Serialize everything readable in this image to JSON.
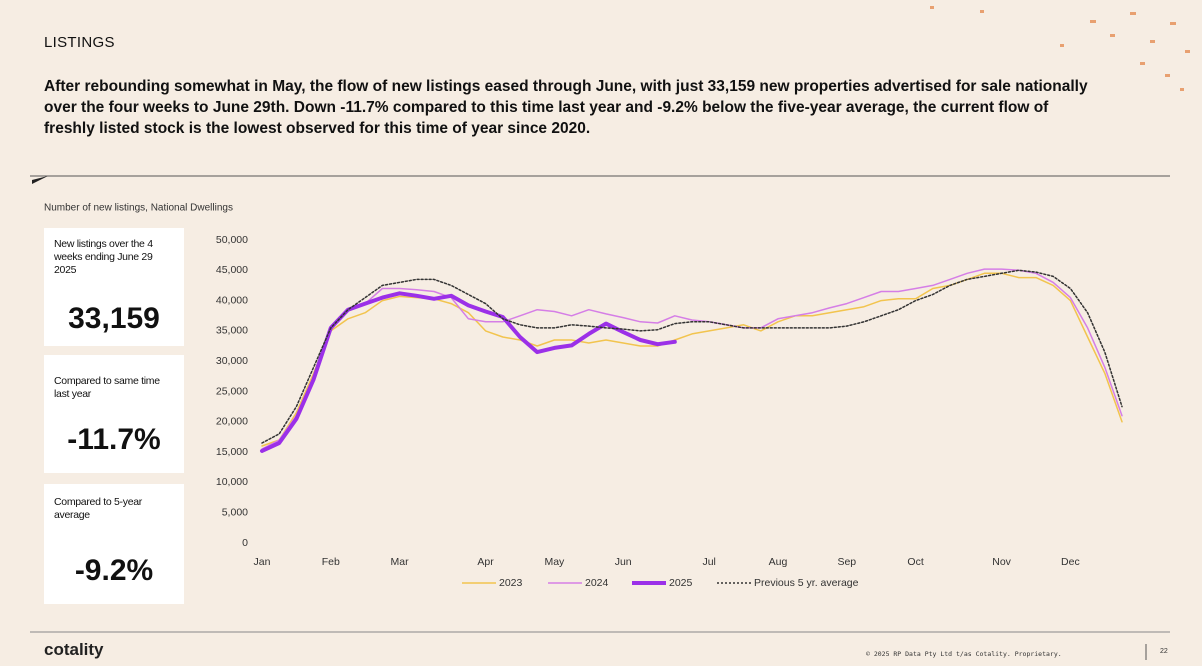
{
  "header": {
    "section": "LISTINGS",
    "body": "After rebounding somewhat in May, the flow of new listings eased through June, with just 33,159 new properties advertised for sale nationally over the four weeks to June 29th. Down -11.7% compared to this time last year and -9.2% below the five-year average, the current flow of freshly listed stock is the lowest observed for this time of year since 2020."
  },
  "cards": [
    {
      "label": "New listings over the 4 weeks ending June 29 2025",
      "value": "33,159"
    },
    {
      "label": "Compared to same time last year",
      "value": "-11.7%"
    },
    {
      "label": "Compared to 5-year average",
      "value": "-9.2%"
    }
  ],
  "chart_data": {
    "type": "line",
    "title": "Number of new listings, National Dwellings",
    "categories": [
      "Jan",
      null,
      null,
      null,
      "Feb",
      null,
      null,
      null,
      "Mar",
      null,
      null,
      null,
      null,
      "Apr",
      null,
      null,
      null,
      "May",
      null,
      null,
      null,
      "Jun",
      null,
      null,
      null,
      null,
      "Jul",
      null,
      null,
      null,
      "Aug",
      null,
      null,
      null,
      "Sep",
      null,
      null,
      null,
      "Oct",
      null,
      null,
      null,
      null,
      "Nov",
      null,
      null,
      null,
      "Dec",
      null,
      null,
      null
    ],
    "ylim": [
      0,
      50000
    ],
    "yticks": [
      0,
      {
        "value": 5000,
        "label": "5,000"
      },
      {
        "value": 10000,
        "label": "10,000"
      },
      {
        "value": 15000,
        "label": "15,000"
      },
      {
        "value": 20000,
        "label": "20,000"
      },
      {
        "value": 25000,
        "label": "25,000"
      },
      {
        "value": 30000,
        "label": "30,000"
      },
      {
        "value": 35000,
        "label": "35,000"
      },
      {
        "value": 40000,
        "label": "40,000"
      },
      {
        "value": 45000,
        "label": "45,000"
      },
      {
        "value": 50000,
        "label": "50,000"
      }
    ],
    "legend": "bottom",
    "series": [
      {
        "name": "2023",
        "color": "#f2c44e",
        "width": 1.5,
        "dashed": false,
        "values": [
          16000,
          17000,
          21500,
          28000,
          35000,
          37000,
          38000,
          40000,
          40700,
          40500,
          40300,
          39500,
          38000,
          35000,
          34000,
          33500,
          32500,
          33500,
          33500,
          33000,
          33500,
          33000,
          32500,
          32500,
          33500,
          34500,
          35000,
          35500,
          36000,
          35000,
          36500,
          37500,
          37500,
          38000,
          38500,
          39000,
          40000,
          40300,
          40300,
          42000,
          42500,
          43500,
          44500,
          44500,
          43800,
          43800,
          42500,
          40000,
          34000,
          28000,
          20000
        ]
      },
      {
        "name": "2024",
        "color": "#d57ee6",
        "width": 1.5,
        "dashed": false,
        "values": [
          15500,
          17000,
          21000,
          27500,
          35500,
          38500,
          39500,
          42000,
          42000,
          41800,
          41500,
          40500,
          37000,
          36500,
          36500,
          37500,
          38500,
          38200,
          37500,
          38500,
          37800,
          37200,
          36500,
          36300,
          37500,
          36800,
          36500,
          36000,
          35500,
          35500,
          37000,
          37500,
          38000,
          38800,
          39500,
          40500,
          41500,
          41500,
          42000,
          42500,
          43500,
          44500,
          45200,
          45200,
          45000,
          44500,
          43000,
          40500,
          35500,
          29000,
          21000
        ]
      },
      {
        "name": "2025",
        "color": "#9b30e8",
        "width": 4,
        "dashed": false,
        "values": [
          15200,
          16500,
          20500,
          27000,
          35500,
          38500,
          39500,
          40500,
          41200,
          40800,
          40300,
          40800,
          39200,
          38200,
          37300,
          34000,
          31500,
          32200,
          32600,
          34500,
          36200,
          34800,
          33500,
          32800,
          33200,
          null,
          null,
          null,
          null,
          null,
          null,
          null,
          null,
          null,
          null,
          null,
          null,
          null,
          null,
          null,
          null,
          null,
          null,
          null,
          null,
          null,
          null,
          null,
          null,
          null,
          null
        ]
      },
      {
        "name": "Previous 5 yr. average",
        "color": "#333333",
        "width": 1.5,
        "dashed": true,
        "values": [
          16500,
          18000,
          22500,
          29000,
          35500,
          38500,
          40500,
          42500,
          43000,
          43500,
          43500,
          42500,
          41000,
          39500,
          37000,
          36000,
          35500,
          35500,
          36000,
          35800,
          35500,
          35300,
          35000,
          35200,
          36200,
          36500,
          36500,
          36000,
          35500,
          35500,
          35500,
          35500,
          35500,
          35500,
          35800,
          36500,
          37500,
          38500,
          40000,
          41000,
          42500,
          43500,
          44000,
          44500,
          45000,
          44700,
          44000,
          42000,
          38000,
          31500,
          22500
        ]
      }
    ]
  },
  "footer": {
    "brand": "cotality",
    "copyright": "© 2025 RP Data Pty Ltd t/as Cotality. Proprietary.",
    "page": "22"
  }
}
